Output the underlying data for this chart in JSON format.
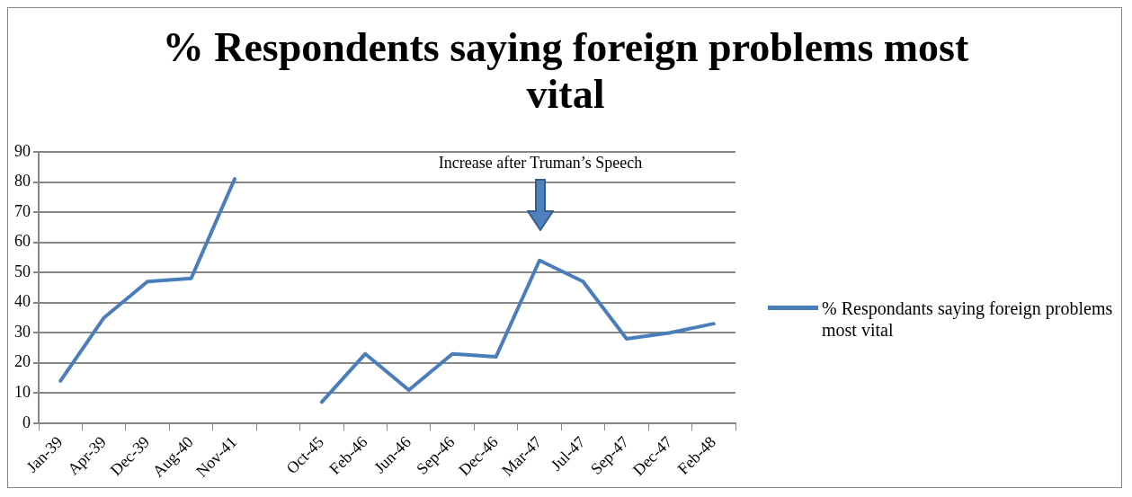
{
  "chart_data": {
    "type": "line",
    "title": "% Respondents saying foreign problems most vital",
    "categories": [
      "Jan-39",
      "Apr-39",
      "Dec-39",
      "Aug-40",
      "Nov-41",
      null,
      "Oct-45",
      "Feb-46",
      "Jun-46",
      "Sep-46",
      "Dec-46",
      "Mar-47",
      "Jul-47",
      "Sep-47",
      "Dec-47",
      "Feb-48"
    ],
    "series": [
      {
        "name": "% Respondants saying foreign problems most vital",
        "color": "#4a7ebb",
        "values": [
          14,
          35,
          47,
          48,
          81,
          null,
          7,
          23,
          11,
          23,
          22,
          54,
          47,
          28,
          30,
          33
        ]
      }
    ],
    "ylim": [
      0,
      90
    ],
    "yticks": [
      0,
      10,
      20,
      30,
      40,
      50,
      60,
      70,
      80,
      90
    ],
    "grid": "y",
    "legend": "right",
    "marker": "none",
    "line_style": "solid",
    "annotations": [
      "Increase after Truman’s Speech"
    ]
  }
}
